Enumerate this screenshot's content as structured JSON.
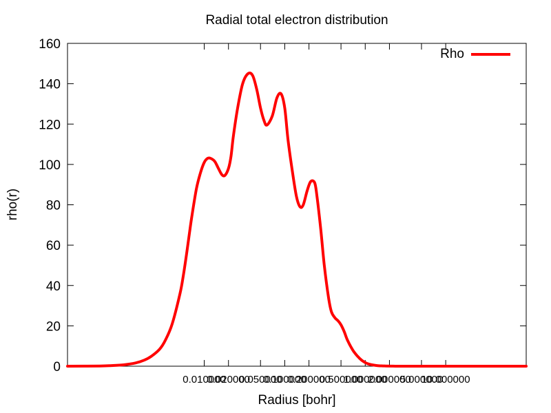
{
  "chart_data": {
    "type": "line",
    "title": "Radial total electron distribution",
    "xlabel": "Radius [bohr]",
    "ylabel": "rho(r)",
    "x_scale": "log",
    "ylim": [
      0,
      160
    ],
    "y_ticks": [
      0,
      20,
      40,
      60,
      80,
      100,
      120,
      140,
      160
    ],
    "x_ticks": [
      {
        "value": 0.01,
        "label": "0.010000"
      },
      {
        "value": 0.02,
        "label": "0.020000"
      },
      {
        "value": 0.05,
        "label": "0.050000"
      },
      {
        "value": 0.1,
        "label": "0.100000"
      },
      {
        "value": 0.2,
        "label": "0.200000"
      },
      {
        "value": 0.5,
        "label": "0.500000"
      },
      {
        "value": 1,
        "label": "1.000000"
      },
      {
        "value": 2,
        "label": "2.000000"
      },
      {
        "value": 5,
        "label": "5.000000"
      },
      {
        "value": 10,
        "label": "10.000000"
      }
    ],
    "xlim": [
      0.0002,
      100
    ],
    "grid": false,
    "legend_position": "top-right",
    "series": [
      {
        "name": "Rho",
        "color": "#ff0000",
        "x": [
          0.0002,
          0.0005,
          0.0007,
          0.001,
          0.0014,
          0.0018,
          0.0022,
          0.0028,
          0.0033,
          0.004,
          0.005,
          0.0055,
          0.006,
          0.0065,
          0.007,
          0.008,
          0.009,
          0.01,
          0.011,
          0.012,
          0.0135,
          0.015,
          0.0165,
          0.018,
          0.02,
          0.0215,
          0.023,
          0.026,
          0.03,
          0.035,
          0.04,
          0.045,
          0.05,
          0.055,
          0.06,
          0.07,
          0.08,
          0.09,
          0.1,
          0.11,
          0.125,
          0.14,
          0.155,
          0.17,
          0.19,
          0.21,
          0.235,
          0.25,
          0.28,
          0.31,
          0.35,
          0.38,
          0.42,
          0.46,
          0.5,
          0.55,
          0.6,
          0.7,
          0.8,
          0.9,
          1.0,
          1.1,
          1.25,
          1.4,
          1.6,
          1.8,
          2.1,
          2.5,
          3.0,
          3.6,
          4.2,
          5.0,
          7.0,
          10,
          20,
          50,
          100
        ],
        "y": [
          0.0,
          0.1,
          0.3,
          0.7,
          1.6,
          3.0,
          4.9,
          8.5,
          13.0,
          21.0,
          36.0,
          45.0,
          55.0,
          65.0,
          74.0,
          88.0,
          96.0,
          101.0,
          103.0,
          103.0,
          101.5,
          98.0,
          95.0,
          94.5,
          98.0,
          104.0,
          114.0,
          128.0,
          140.0,
          145.0,
          144.0,
          137.0,
          128.0,
          122.0,
          119.5,
          124.0,
          133.0,
          135.0,
          128.0,
          112.0,
          96.0,
          84.0,
          79.0,
          80.0,
          87.0,
          91.5,
          91.0,
          85.0,
          68.0,
          50.0,
          34.0,
          27.0,
          24.0,
          22.5,
          20.5,
          17.0,
          13.0,
          8.0,
          5.0,
          3.0,
          1.8,
          1.1,
          0.6,
          0.3,
          0.15,
          0.1,
          0.05,
          0.0,
          0.0,
          0.0,
          0.0,
          0.0,
          0.0,
          0.0,
          0.0,
          0.0,
          0.0
        ]
      }
    ]
  }
}
